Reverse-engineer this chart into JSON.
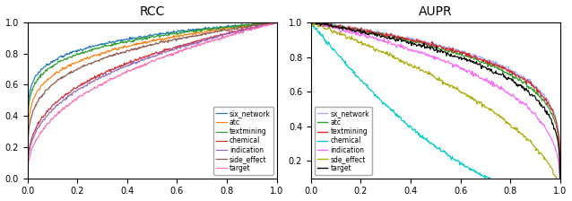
{
  "roc_title": "RCC",
  "aupr_title": "AUPR",
  "legend_labels": [
    "six_network",
    "atc",
    "textmining",
    "chemical",
    "indication",
    "side_effect",
    "target"
  ],
  "roc_colors": [
    "#1f77b4",
    "#ff7f0e",
    "#2ca02c",
    "#d62728",
    "#9467bd",
    "#8c564b",
    "#ff69b4"
  ],
  "aupr_colors": [
    "#aaaaff",
    "#2ca02c",
    "#d62728",
    "#00cccc",
    "#ff66ff",
    "#aaaa00",
    "#000000"
  ],
  "aupr_legend_labels": [
    "sx_network",
    "atc",
    "textmining",
    "chemical",
    "indication",
    "sde_effect",
    "target"
  ],
  "roc_betas": [
    8.0,
    5.5,
    7.0,
    3.0,
    2.8,
    4.5,
    2.4
  ],
  "aupr_alphas": [
    5.0,
    4.5,
    4.8,
    0.55,
    3.0,
    1.8,
    4.0
  ],
  "roc_noise": 0.004,
  "aupr_noise": 0.006,
  "n_points": 400,
  "xlim": [
    0.0,
    1.0
  ],
  "ylim_roc": [
    0.0,
    1.0
  ],
  "ylim_aupr": [
    0.1,
    1.0
  ],
  "yticks_aupr": [
    0.2,
    0.4,
    0.6,
    0.8,
    1.0
  ],
  "yticks_roc": [
    0.0,
    0.2,
    0.4,
    0.6,
    0.8,
    1.0
  ],
  "xticks": [
    0.0,
    0.2,
    0.4,
    0.6,
    0.8,
    1.0
  ],
  "tick_labelsize": 7,
  "title_fontsize": 10,
  "legend_fontsize": 5.5,
  "linewidth": 0.85,
  "figsize": [
    6.38,
    2.24
  ],
  "dpi": 100
}
